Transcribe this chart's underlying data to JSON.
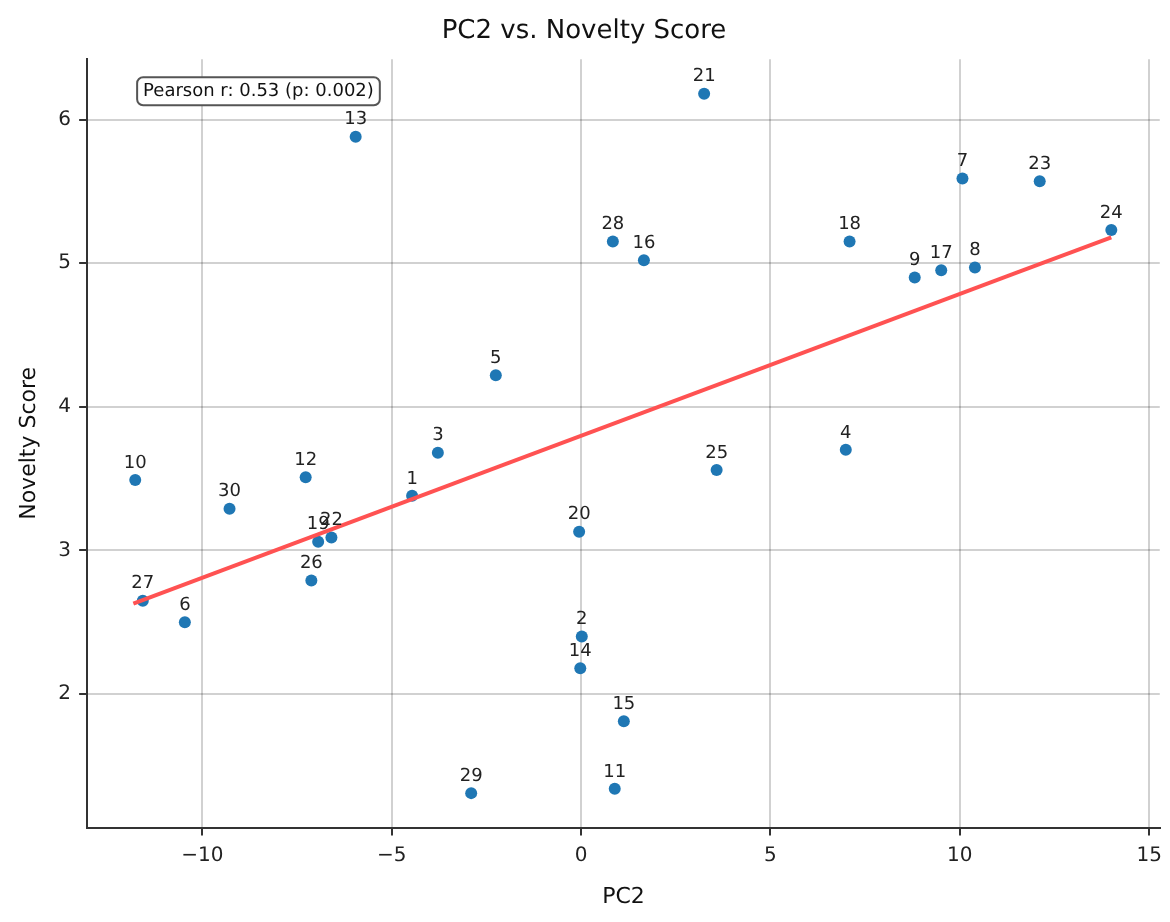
{
  "chart_data": {
    "type": "scatter",
    "title": "PC2 vs. Novelty Score",
    "xlabel": "PC2",
    "ylabel": "Novelty Score",
    "annotations": [
      "Pearson r: 0.53 (p: 0.002)",
      {
        "text": "1",
        "x": -4.46,
        "y": 3.38
      },
      {
        "text": "2",
        "x": 0.02,
        "y": 2.4
      },
      {
        "text": "3",
        "x": -3.78,
        "y": 3.68
      },
      {
        "text": "4",
        "x": 6.99,
        "y": 3.7
      },
      {
        "text": "5",
        "x": -2.25,
        "y": 4.22
      },
      {
        "text": "6",
        "x": -10.46,
        "y": 2.5
      },
      {
        "text": "7",
        "x": 10.07,
        "y": 5.59
      },
      {
        "text": "8",
        "x": 10.4,
        "y": 4.97
      },
      {
        "text": "9",
        "x": 8.81,
        "y": 4.9
      },
      {
        "text": "10",
        "x": -11.77,
        "y": 3.49
      },
      {
        "text": "11",
        "x": 0.89,
        "y": 1.34
      },
      {
        "text": "12",
        "x": -7.27,
        "y": 3.51
      },
      {
        "text": "13",
        "x": -5.95,
        "y": 5.88
      },
      {
        "text": "14",
        "x": -0.02,
        "y": 2.18
      },
      {
        "text": "15",
        "x": 1.13,
        "y": 1.81
      },
      {
        "text": "16",
        "x": 1.66,
        "y": 5.02
      },
      {
        "text": "17",
        "x": 9.51,
        "y": 4.95
      },
      {
        "text": "18",
        "x": 7.09,
        "y": 5.15
      },
      {
        "text": "19",
        "x": -6.94,
        "y": 3.06
      },
      {
        "text": "20",
        "x": -0.05,
        "y": 3.13
      },
      {
        "text": "21",
        "x": 3.25,
        "y": 6.18
      },
      {
        "text": "22",
        "x": -6.59,
        "y": 3.09
      },
      {
        "text": "23",
        "x": 12.11,
        "y": 5.57
      },
      {
        "text": "24",
        "x": 14.0,
        "y": 5.23
      },
      {
        "text": "25",
        "x": 3.58,
        "y": 3.56
      },
      {
        "text": "26",
        "x": -7.12,
        "y": 2.79
      },
      {
        "text": "27",
        "x": -11.57,
        "y": 2.65
      },
      {
        "text": "28",
        "x": 0.84,
        "y": 5.15
      },
      {
        "text": "29",
        "x": -2.9,
        "y": 1.31
      },
      {
        "text": "30",
        "x": -9.28,
        "y": 3.29
      }
    ],
    "xlim": [
      -13.04,
      15.28
    ],
    "ylim": [
      1.07,
      6.42
    ],
    "xticks": [
      {
        "value": -10,
        "label": "−10"
      },
      {
        "value": -5,
        "label": "−5"
      },
      0,
      5,
      10,
      15
    ],
    "yticks": [
      2,
      3,
      4,
      5,
      6
    ],
    "grid": true,
    "legend": false,
    "marker": "circle",
    "series": [
      {
        "color": "#1f77b4",
        "x": [
          -4.46,
          0.02,
          -3.78,
          6.99,
          -2.25,
          -10.46,
          10.07,
          10.4,
          8.81,
          -11.77,
          0.89,
          -7.27,
          -5.95,
          -0.02,
          1.13,
          1.66,
          9.51,
          7.09,
          -6.94,
          -0.05,
          3.25,
          -6.59,
          12.11,
          14.0,
          3.58,
          -7.12,
          -11.57,
          0.84,
          -2.9,
          -9.28
        ],
        "values": [
          3.38,
          2.4,
          3.68,
          3.7,
          4.22,
          2.5,
          5.59,
          4.97,
          4.9,
          3.49,
          1.34,
          3.51,
          5.88,
          2.18,
          1.81,
          5.02,
          4.95,
          5.15,
          3.06,
          3.13,
          6.18,
          3.09,
          5.57,
          5.23,
          3.56,
          2.79,
          2.65,
          5.15,
          1.31,
          3.29
        ]
      },
      {
        "type": "line",
        "color": "#ff5252",
        "marker": "none",
        "line_style": "solid",
        "x": [
          -11.82,
          14.0
        ],
        "values": [
          2.63,
          5.18
        ]
      }
    ]
  }
}
